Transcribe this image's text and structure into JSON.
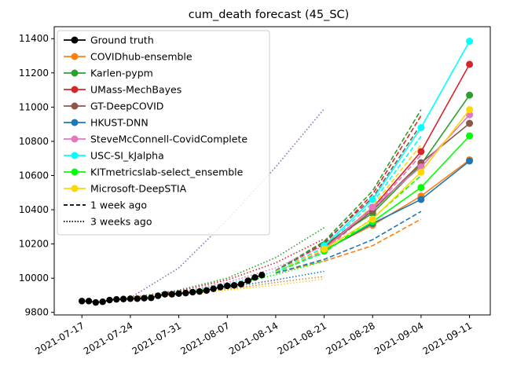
{
  "chart_data": {
    "type": "line",
    "title": "cum_death forecast (45_SC)",
    "xlabel": "",
    "ylabel": "",
    "x_ticks": [
      "2021-07-17",
      "2021-07-24",
      "2021-07-31",
      "2021-08-07",
      "2021-08-14",
      "2021-08-21",
      "2021-08-28",
      "2021-09-04",
      "2021-09-11"
    ],
    "y_ticks": [
      9800,
      10000,
      10200,
      10400,
      10600,
      10800,
      11000,
      11200,
      11400
    ],
    "xlim": [
      "2021-07-13",
      "2021-09-14"
    ],
    "ylim": [
      9785,
      11470
    ],
    "grid": false,
    "legend_position": "top-left",
    "ground_truth": {
      "name": "Ground truth",
      "color": "#000000",
      "x": [
        "2021-07-17",
        "2021-07-18",
        "2021-07-19",
        "2021-07-20",
        "2021-07-21",
        "2021-07-22",
        "2021-07-23",
        "2021-07-24",
        "2021-07-25",
        "2021-07-26",
        "2021-07-27",
        "2021-07-28",
        "2021-07-29",
        "2021-07-30",
        "2021-07-31",
        "2021-08-01",
        "2021-08-02",
        "2021-08-03",
        "2021-08-04",
        "2021-08-05",
        "2021-08-06",
        "2021-08-07",
        "2021-08-08",
        "2021-08-09",
        "2021-08-10",
        "2021-08-11",
        "2021-08-12"
      ],
      "y": [
        9866,
        9866,
        9858,
        9862,
        9872,
        9876,
        9878,
        9880,
        9880,
        9883,
        9885,
        9897,
        9906,
        9906,
        9910,
        9913,
        9918,
        9922,
        9928,
        9938,
        9948,
        9955,
        9958,
        9965,
        9985,
        10004,
        10018
      ]
    },
    "forecasts": [
      {
        "name": "COVIDhub-ensemble",
        "color": "#ff7f0e",
        "x": [
          "2021-08-21",
          "2021-08-28",
          "2021-09-04",
          "2021-09-11"
        ],
        "y": [
          10165,
          10310,
          10480,
          10692
        ]
      },
      {
        "name": "Karlen-pypm",
        "color": "#2ca02c",
        "x": [
          "2021-08-21",
          "2021-08-28",
          "2021-09-04",
          "2021-09-11"
        ],
        "y": [
          10195,
          10380,
          10665,
          11070
        ]
      },
      {
        "name": "UMass-MechBayes",
        "color": "#d62728",
        "x": [
          "2021-08-21",
          "2021-08-28",
          "2021-09-04",
          "2021-09-11"
        ],
        "y": [
          10180,
          10410,
          10740,
          11250
        ]
      },
      {
        "name": "GT-DeepCOVID",
        "color": "#8c564b",
        "x": [
          "2021-08-21",
          "2021-08-28",
          "2021-09-04",
          "2021-09-11"
        ],
        "y": [
          10175,
          10395,
          10675,
          10905
        ]
      },
      {
        "name": "HKUST-DNN",
        "color": "#1f77b4",
        "x": [
          "2021-08-21",
          "2021-08-28",
          "2021-09-04",
          "2021-09-11"
        ],
        "y": [
          10160,
          10320,
          10460,
          10685
        ]
      },
      {
        "name": "SteveMcConnell-CovidComplete",
        "color": "#e377c2",
        "x": [
          "2021-08-21",
          "2021-08-28",
          "2021-09-04",
          "2021-09-11"
        ],
        "y": [
          10170,
          10415,
          10650,
          10955
        ]
      },
      {
        "name": "USC-SI_kJalpha",
        "color": "#00ffff",
        "x": [
          "2021-08-21",
          "2021-08-28",
          "2021-09-04",
          "2021-09-11"
        ],
        "y": [
          10190,
          10460,
          10880,
          11385
        ]
      },
      {
        "name": "KITmetricslab-select_ensemble",
        "color": "#00ff00",
        "x": [
          "2021-08-21",
          "2021-08-28",
          "2021-09-04",
          "2021-09-11"
        ],
        "y": [
          10158,
          10330,
          10530,
          10832
        ]
      },
      {
        "name": "Microsoft-DeepSTIA",
        "color": "#ffd700",
        "x": [
          "2021-08-21",
          "2021-08-28",
          "2021-09-04",
          "2021-09-11"
        ],
        "y": [
          10170,
          10345,
          10620,
          10985
        ]
      }
    ],
    "past_forecasts": [
      {
        "color": "#ff7f0e",
        "style": "dashed",
        "x": [
          "2021-08-14",
          "2021-08-21",
          "2021-08-28",
          "2021-09-04"
        ],
        "y": [
          10030,
          10100,
          10190,
          10345
        ]
      },
      {
        "color": "#1f77b4",
        "style": "dashed",
        "x": [
          "2021-08-14",
          "2021-08-21",
          "2021-08-28",
          "2021-09-04"
        ],
        "y": [
          10030,
          10110,
          10225,
          10390
        ]
      },
      {
        "color": "#2ca02c",
        "style": "dashed",
        "x": [
          "2021-08-14",
          "2021-08-21",
          "2021-08-28",
          "2021-09-04"
        ],
        "y": [
          10045,
          10215,
          10510,
          10985
        ]
      },
      {
        "color": "#d62728",
        "style": "dashed",
        "x": [
          "2021-08-14",
          "2021-08-21",
          "2021-08-28",
          "2021-09-04"
        ],
        "y": [
          10042,
          10200,
          10490,
          10950
        ]
      },
      {
        "color": "#8c564b",
        "style": "dashed",
        "x": [
          "2021-08-14",
          "2021-08-21",
          "2021-08-28",
          "2021-09-04"
        ],
        "y": [
          10040,
          10210,
          10470,
          10900
        ]
      },
      {
        "color": "#e377c2",
        "style": "dashed",
        "x": [
          "2021-08-14",
          "2021-08-21",
          "2021-08-28",
          "2021-09-04"
        ],
        "y": [
          10035,
          10160,
          10400,
          10720
        ]
      },
      {
        "color": "#00ffff",
        "style": "dashed",
        "x": [
          "2021-08-14",
          "2021-08-21",
          "2021-08-28",
          "2021-09-04"
        ],
        "y": [
          10040,
          10180,
          10440,
          10830
        ]
      },
      {
        "color": "#00ff00",
        "style": "dashed",
        "x": [
          "2021-08-14",
          "2021-08-21",
          "2021-08-28",
          "2021-09-04"
        ],
        "y": [
          10035,
          10150,
          10350,
          10600
        ]
      },
      {
        "color": "#ffd700",
        "style": "dashed",
        "x": [
          "2021-08-14",
          "2021-08-21",
          "2021-08-28",
          "2021-09-04"
        ],
        "y": [
          10038,
          10170,
          10420,
          10780
        ]
      },
      {
        "color": "#9467bd",
        "style": "dotted",
        "x": [
          "2021-07-24",
          "2021-07-31",
          "2021-08-07",
          "2021-08-14",
          "2021-08-21"
        ],
        "y": [
          9885,
          10060,
          10340,
          10650,
          10990
        ]
      },
      {
        "color": "#2ca02c",
        "style": "dotted",
        "x": [
          "2021-07-24",
          "2021-07-31",
          "2021-08-07",
          "2021-08-14",
          "2021-08-21"
        ],
        "y": [
          9885,
          9930,
          10000,
          10120,
          10295
        ]
      },
      {
        "color": "#d62728",
        "style": "dotted",
        "x": [
          "2021-07-24",
          "2021-07-31",
          "2021-08-07",
          "2021-08-14",
          "2021-08-21"
        ],
        "y": [
          9885,
          9925,
          9990,
          10090,
          10230
        ]
      },
      {
        "color": "#e377c2",
        "style": "dotted",
        "x": [
          "2021-07-24",
          "2021-07-31",
          "2021-08-07",
          "2021-08-14",
          "2021-08-21"
        ],
        "y": [
          9885,
          9918,
          9975,
          10060,
          10190
        ]
      },
      {
        "color": "#00ffff",
        "style": "dotted",
        "x": [
          "2021-07-24",
          "2021-07-31",
          "2021-08-07",
          "2021-08-14",
          "2021-08-21"
        ],
        "y": [
          9885,
          9915,
          9965,
          10040,
          10150
        ]
      },
      {
        "color": "#00ff00",
        "style": "dotted",
        "x": [
          "2021-07-24",
          "2021-07-31",
          "2021-08-07",
          "2021-08-14",
          "2021-08-21"
        ],
        "y": [
          9885,
          9912,
          9955,
          10020,
          10100
        ]
      },
      {
        "color": "#ff7f0e",
        "style": "dotted",
        "x": [
          "2021-07-24",
          "2021-07-31",
          "2021-08-07",
          "2021-08-14",
          "2021-08-21"
        ],
        "y": [
          9885,
          9905,
          9935,
          9975,
          10010
        ]
      },
      {
        "color": "#1f77b4",
        "style": "dotted",
        "x": [
          "2021-07-24",
          "2021-07-31",
          "2021-08-07",
          "2021-08-14",
          "2021-08-21"
        ],
        "y": [
          9885,
          9908,
          9945,
          9990,
          10040
        ]
      },
      {
        "color": "#ffd700",
        "style": "dotted",
        "x": [
          "2021-07-24",
          "2021-07-31",
          "2021-08-07",
          "2021-08-14",
          "2021-08-21"
        ],
        "y": [
          9885,
          9905,
          9930,
          9960,
          9995
        ]
      }
    ],
    "legend_extra": [
      {
        "label": "1 week ago",
        "style": "dashed"
      },
      {
        "label": "3 weeks ago",
        "style": "dotted"
      }
    ]
  }
}
